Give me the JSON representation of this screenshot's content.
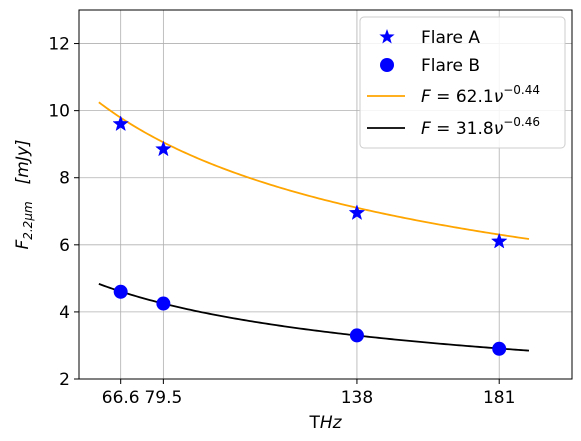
{
  "chart_data": {
    "type": "scatter",
    "xlabel": "THz",
    "ylabel": "F_{2.2μm}  [mJy]",
    "xlim": [
      54,
      203
    ],
    "ylim": [
      2,
      13
    ],
    "xticks": [
      66.6,
      79.5,
      138,
      181
    ],
    "xtick_labels": [
      "66.6",
      "79.5",
      "138",
      "181"
    ],
    "yticks": [
      2,
      4,
      6,
      8,
      10,
      12
    ],
    "ytick_labels": [
      "2",
      "4",
      "6",
      "8",
      "10",
      "12"
    ],
    "grid": true,
    "legend_position": "top-right",
    "series": [
      {
        "name": "Flare A",
        "kind": "points",
        "marker": "star",
        "color": "#0000ff",
        "x": [
          66.6,
          79.5,
          138,
          181
        ],
        "y": [
          9.6,
          8.85,
          6.95,
          6.1
        ]
      },
      {
        "name": "Flare B",
        "kind": "points",
        "marker": "circle",
        "color": "#0000ff",
        "x": [
          66.6,
          79.5,
          138,
          181
        ],
        "y": [
          4.6,
          4.25,
          3.3,
          2.9
        ]
      },
      {
        "name": "F = 62.1ν^{−0.44}",
        "kind": "fit",
        "color": "#ffa500",
        "amplitude": 62.1,
        "exponent": -0.44,
        "x_range": [
          60,
          190
        ]
      },
      {
        "name": "F = 31.8ν^{−0.46}",
        "kind": "fit",
        "color": "#000000",
        "amplitude": 31.8,
        "exponent": -0.46,
        "x_range": [
          60,
          190
        ]
      }
    ]
  }
}
